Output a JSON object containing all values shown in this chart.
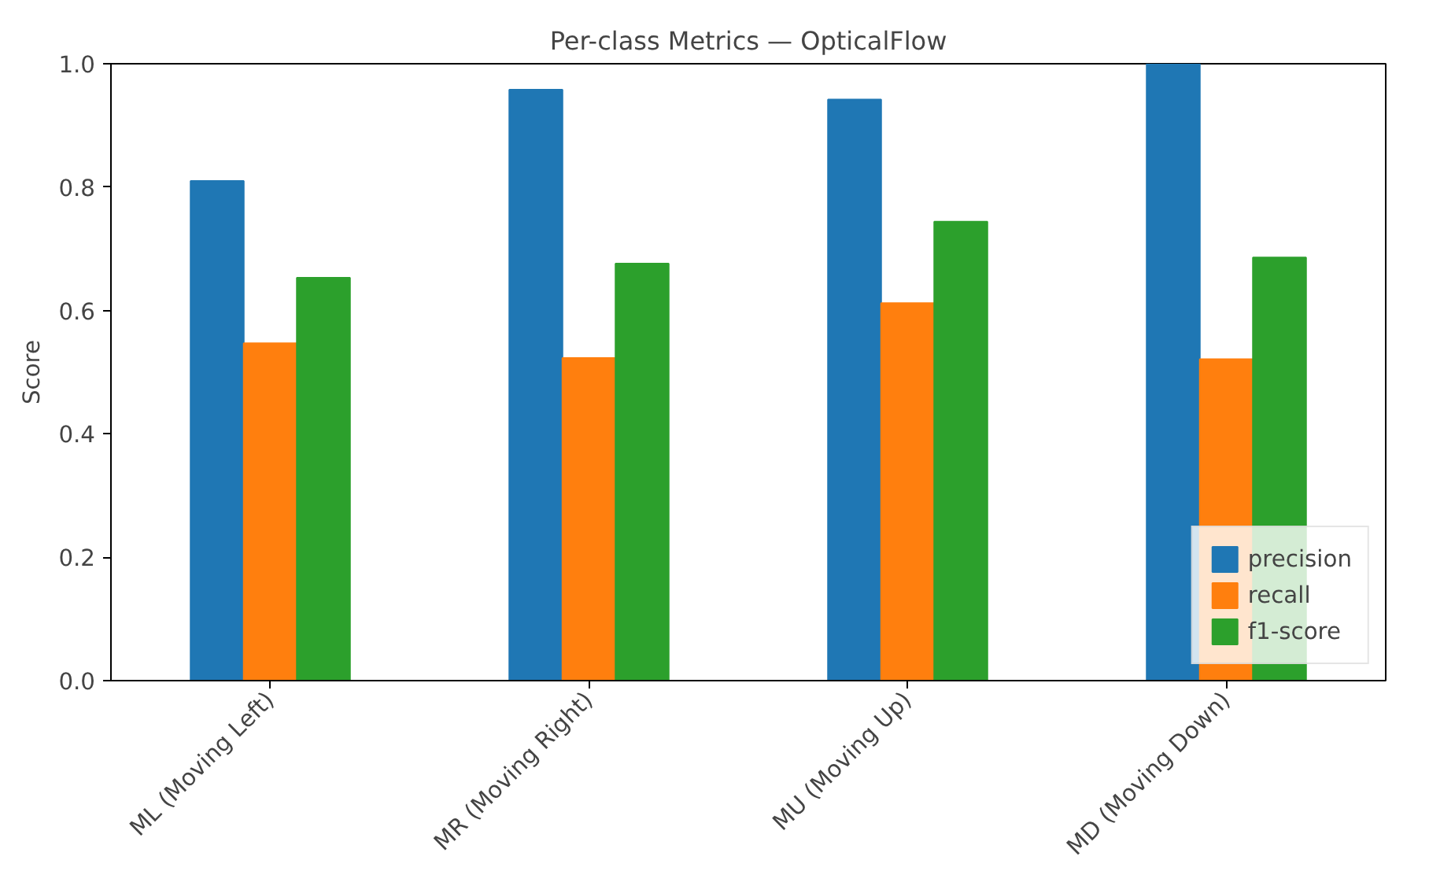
{
  "chart_data": {
    "type": "bar",
    "title": "Per-class Metrics — OpticalFlow",
    "ylabel": "Score",
    "categories": [
      "ML (Moving Left)",
      "MR (Moving Right)",
      "MU (Moving Up)",
      "MD (Moving Down)"
    ],
    "series": [
      {
        "name": "precision",
        "color": "#1f77b4",
        "values": [
          0.81,
          0.958,
          0.942,
          1.0
        ]
      },
      {
        "name": "recall",
        "color": "#ff7f0e",
        "values": [
          0.547,
          0.523,
          0.612,
          0.521
        ]
      },
      {
        "name": "f1-score",
        "color": "#2ca02c",
        "values": [
          0.653,
          0.676,
          0.744,
          0.686
        ]
      }
    ],
    "ylim": [
      0.0,
      1.0
    ],
    "yticks": [
      {
        "value": 0,
        "label": "0.0"
      },
      {
        "value": 0.2,
        "label": "0.2"
      },
      {
        "value": 0.4,
        "label": "0.4"
      },
      {
        "value": 0.6,
        "label": "0.6"
      },
      {
        "value": 0.8,
        "label": "0.8"
      },
      {
        "value": 1.0,
        "label": "1.0"
      }
    ],
    "grid": false,
    "legend": "bottom right"
  }
}
